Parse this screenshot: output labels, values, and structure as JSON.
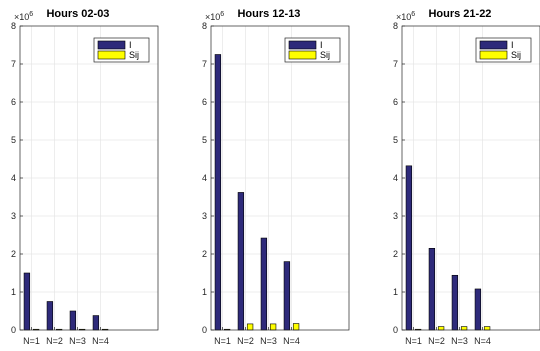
{
  "colors": {
    "I": "#2e2a7a",
    "Sij": "#ffff00"
  },
  "chart_data": [
    {
      "type": "bar",
      "title": "Hours 02-03",
      "exponent_label": "×10",
      "exponent_power": "6",
      "categories": [
        "N=1",
        "N=2",
        "N=3",
        "N=4"
      ],
      "series": [
        {
          "name": "I",
          "values": [
            1.5,
            0.75,
            0.5,
            0.38
          ]
        },
        {
          "name": "Sij",
          "values": [
            0.02,
            0.02,
            0.02,
            0.02
          ]
        }
      ],
      "yticks": [
        "0",
        "1",
        "2",
        "3",
        "4",
        "5",
        "6",
        "7",
        "8"
      ],
      "ylim": [
        0,
        8
      ],
      "xlim": [
        0.5,
        6.5
      ],
      "grid": true,
      "legend": "top-right"
    },
    {
      "type": "bar",
      "title": "Hours 12-13",
      "exponent_label": "×10",
      "exponent_power": "6",
      "categories": [
        "N=1",
        "N=2",
        "N=3",
        "N=4"
      ],
      "series": [
        {
          "name": "I",
          "values": [
            7.25,
            3.62,
            2.42,
            1.8
          ]
        },
        {
          "name": "Sij",
          "values": [
            0.02,
            0.16,
            0.16,
            0.17
          ]
        }
      ],
      "yticks": [
        "0",
        "1",
        "2",
        "3",
        "4",
        "5",
        "6",
        "7",
        "8"
      ],
      "ylim": [
        0,
        8
      ],
      "xlim": [
        0.5,
        6.5
      ],
      "grid": true,
      "legend": "top-right"
    },
    {
      "type": "bar",
      "title": "Hours 21-22",
      "exponent_label": "×10",
      "exponent_power": "6",
      "categories": [
        "N=1",
        "N=2",
        "N=3",
        "N=4"
      ],
      "series": [
        {
          "name": "I",
          "values": [
            4.32,
            2.15,
            1.44,
            1.08
          ]
        },
        {
          "name": "Sij",
          "values": [
            0.02,
            0.09,
            0.09,
            0.09
          ]
        }
      ],
      "yticks": [
        "0",
        "1",
        "2",
        "3",
        "4",
        "5",
        "6",
        "7",
        "8"
      ],
      "ylim": [
        0,
        8
      ],
      "xlim": [
        0.5,
        6.5
      ],
      "grid": true,
      "legend": "top-right"
    }
  ]
}
